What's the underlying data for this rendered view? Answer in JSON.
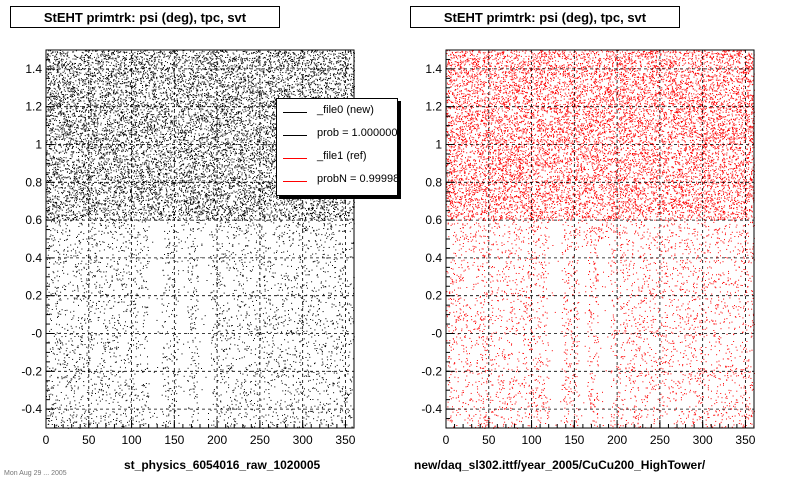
{
  "panels": [
    {
      "title": "StEHT primtrk: psi (deg), tpc, svt",
      "footer": "st_physics_6054016_raw_1020005",
      "legend": {
        "entries": [
          {
            "label": "_file0 (new)",
            "color": "#000000"
          },
          {
            "label": "prob = 1.000000",
            "color": "#000000"
          },
          {
            "label": "_file1 (ref)",
            "color": "#ff0000"
          },
          {
            "label": "probN = 0.99998",
            "color": "#ff0000"
          }
        ]
      }
    },
    {
      "title": "StEHT primtrk: psi (deg), tpc, svt",
      "footer": "new/daq_sl302.ittf/year_2005/CuCu200_HighTower/",
      "legend": null
    }
  ],
  "bottom_note": "Mon Aug 29 ... 2005",
  "chart_data": [
    {
      "type": "scatter",
      "title": "StEHT primtrk: psi (deg), tpc, svt",
      "marker_color": "#000000",
      "xlim": [
        0,
        360
      ],
      "ylim": [
        -0.5,
        1.5
      ],
      "xticks": [
        0,
        50,
        100,
        150,
        200,
        250,
        300,
        350
      ],
      "yticks": [
        -0.4,
        -0.2,
        0,
        0.2,
        0.4,
        0.6,
        0.8,
        1,
        1.2,
        1.4
      ],
      "ytick_labels": [
        "-0.4",
        "-0.2",
        "-0",
        "0.2",
        "0.4",
        "0.6",
        "0.8",
        "1",
        "1.2",
        "1.4"
      ],
      "grid": true,
      "dense_region": {
        "ymin": 0.6,
        "ymax": 1.5
      },
      "gaps": [
        {
          "x_range": [
            120,
            135
          ],
          "y_range": [
            -0.5,
            0.6
          ]
        },
        {
          "x_range": [
            178,
            192
          ],
          "y_range": [
            -0.5,
            0.5
          ]
        },
        {
          "x_range": [
            155,
            165
          ],
          "y_range": [
            -0.5,
            0.45
          ]
        }
      ]
    },
    {
      "type": "scatter",
      "title": "StEHT primtrk: psi (deg), tpc, svt",
      "marker_color": "#ff0000",
      "xlim": [
        0,
        360
      ],
      "ylim": [
        -0.5,
        1.5
      ],
      "xticks": [
        0,
        50,
        100,
        150,
        200,
        250,
        300,
        350
      ],
      "yticks": [
        -0.4,
        -0.2,
        0,
        0.2,
        0.4,
        0.6,
        0.8,
        1,
        1.2,
        1.4
      ],
      "ytick_labels": [
        "-0.4",
        "-0.2",
        "-0",
        "0.2",
        "0.4",
        "0.6",
        "0.8",
        "1",
        "1.2",
        "1.4"
      ],
      "grid": true,
      "dense_region": {
        "ymin": 0.6,
        "ymax": 1.5
      },
      "gaps": [
        {
          "x_range": [
            120,
            135
          ],
          "y_range": [
            -0.5,
            0.6
          ]
        },
        {
          "x_range": [
            178,
            192
          ],
          "y_range": [
            -0.5,
            0.5
          ]
        },
        {
          "x_range": [
            155,
            165
          ],
          "y_range": [
            -0.5,
            0.45
          ]
        }
      ]
    }
  ]
}
